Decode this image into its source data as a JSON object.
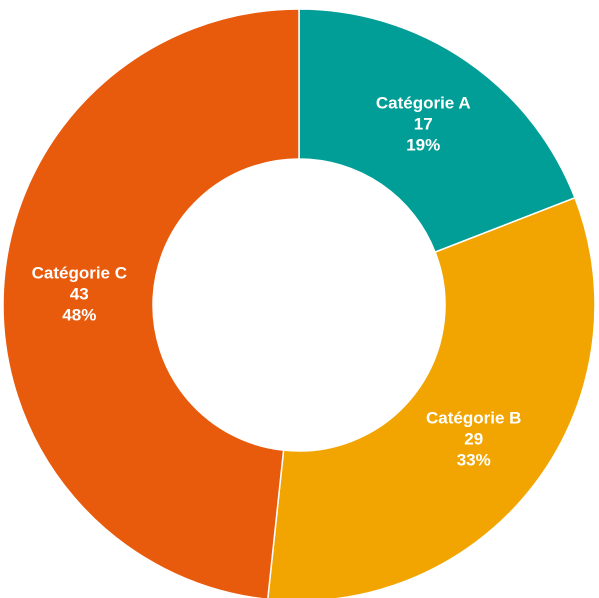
{
  "chart_data": {
    "type": "pie",
    "subtype": "donut",
    "title": "",
    "legend": "none",
    "categories": [
      "Catégorie A",
      "Catégorie B",
      "Catégorie C"
    ],
    "values": [
      17,
      29,
      43
    ],
    "percent_labels": [
      "19%",
      "33%",
      "48%"
    ],
    "colors": [
      "#009E96",
      "#F2A500",
      "#E85A0C"
    ],
    "slices": [
      {
        "label": "Catégorie A",
        "value": 17,
        "percent": "19%",
        "color": "#009E96"
      },
      {
        "label": "Catégorie B",
        "value": 29,
        "percent": "33%",
        "color": "#F2A500"
      },
      {
        "label": "Catégorie C",
        "value": 43,
        "percent": "48%",
        "color": "#E85A0C"
      }
    ]
  }
}
